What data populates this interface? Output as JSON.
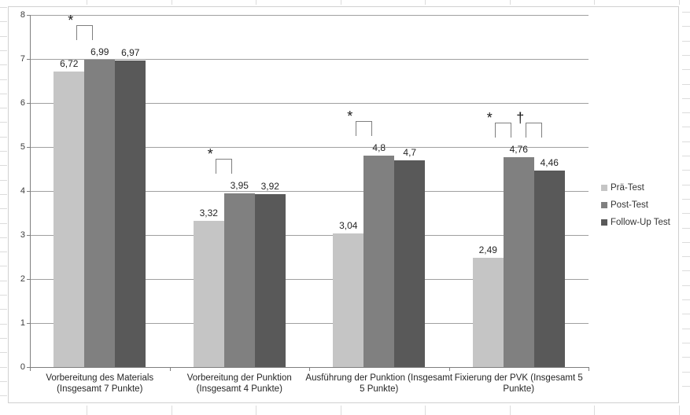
{
  "chart_data": {
    "type": "bar",
    "title": "",
    "xlabel": "",
    "ylabel": "",
    "categories": [
      "Vorbereitung des Materials (Insgesamt 7 Punkte)",
      "Vorbereitung der Punktion (Insgesamt 4 Punkte)",
      "Ausführung der Punktion (Insgesamt 5 Punkte)",
      "Fixierung der PVK (Insgesamt 5 Punkte)"
    ],
    "series": [
      {
        "name": "Prä-Test",
        "color": "#C5C5C5",
        "values": [
          6.72,
          3.32,
          3.04,
          2.49
        ],
        "labels": [
          "6,72",
          "3,32",
          "3,04",
          "2,49"
        ]
      },
      {
        "name": "Post-Test",
        "color": "#808080",
        "values": [
          6.99,
          3.95,
          4.8,
          4.76
        ],
        "labels": [
          "6,99",
          "3,95",
          "4,8",
          "4,76"
        ]
      },
      {
        "name": "Follow-Up Test",
        "color": "#595959",
        "values": [
          6.97,
          3.92,
          4.7,
          4.46
        ],
        "labels": [
          "6,97",
          "3,92",
          "4,7",
          "4,46"
        ]
      }
    ],
    "y_axis": {
      "min": 0,
      "max": 8,
      "step": 1,
      "ticks": [
        "0",
        "1",
        "2",
        "3",
        "4",
        "5",
        "6",
        "7",
        "8"
      ]
    },
    "grid": true,
    "legend_position": "right",
    "annotations": [
      {
        "symbol": "*",
        "group": 0,
        "between": [
          0,
          1
        ]
      },
      {
        "symbol": "*",
        "group": 1,
        "between": [
          0,
          1
        ]
      },
      {
        "symbol": "*",
        "group": 2,
        "between": [
          0,
          1
        ]
      },
      {
        "symbol": "*",
        "group": 3,
        "between": [
          0,
          1
        ]
      },
      {
        "symbol": "†",
        "group": 3,
        "between": [
          1,
          2
        ]
      }
    ]
  }
}
